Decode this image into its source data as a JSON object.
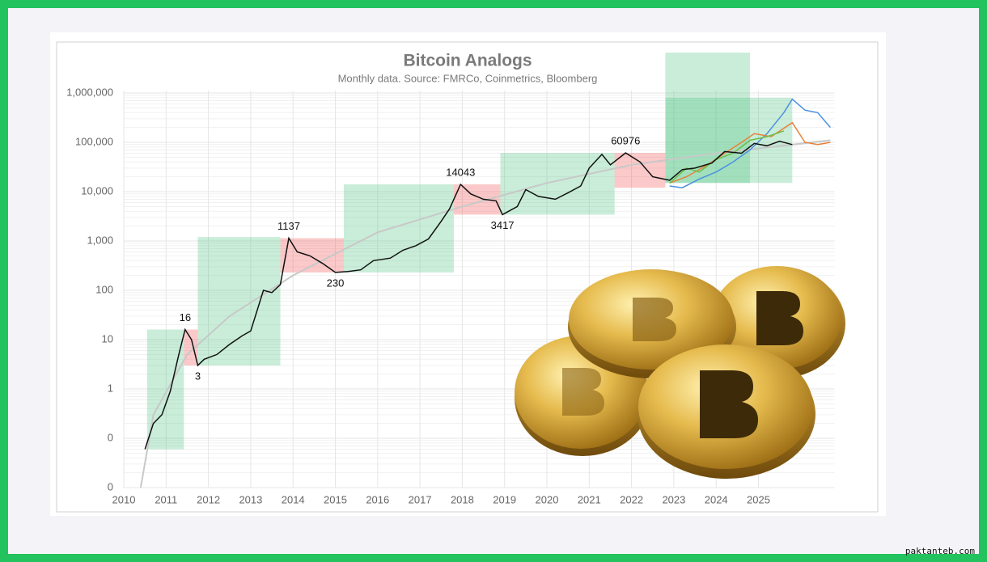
{
  "chart_data": {
    "type": "line",
    "title": "Bitcoin Analogs",
    "subtitle": "Monthly data.  Source: FMRCo, Coinmetrics, Bloomberg",
    "log_scale": true,
    "grid": true,
    "xlim": [
      2010,
      2026.8
    ],
    "xticks": [
      2010,
      2011,
      2012,
      2013,
      2014,
      2015,
      2016,
      2017,
      2018,
      2019,
      2020,
      2021,
      2022,
      2023,
      2024,
      2025
    ],
    "ylim": [
      0.01,
      1000000
    ],
    "yticks": [
      {
        "value": 0.01,
        "label": "0"
      },
      {
        "value": 0.1,
        "label": "0"
      },
      1,
      10,
      100,
      {
        "value": 1000,
        "label": "1,000"
      },
      {
        "value": 10000,
        "label": "10,000"
      },
      {
        "value": 100000,
        "label": "100,000"
      },
      {
        "value": 1000000,
        "label": "1,000,000"
      }
    ],
    "regions": [
      {
        "x": [
          2010.55,
          2011.42
        ],
        "y": [
          0.06,
          16
        ],
        "color": "#3cbe78"
      },
      {
        "x": [
          2011.42,
          2011.75
        ],
        "y": [
          3,
          16
        ],
        "color": "#f03c3c"
      },
      {
        "x": [
          2011.75,
          2013.7
        ],
        "y": [
          3,
          1200
        ],
        "color": "#3cbe78"
      },
      {
        "x": [
          2013.7,
          2015.2
        ],
        "y": [
          230,
          1137
        ],
        "color": "#f03c3c"
      },
      {
        "x": [
          2015.2,
          2017.8
        ],
        "y": [
          230,
          14043
        ],
        "color": "#3cbe78"
      },
      {
        "x": [
          2017.8,
          2018.9
        ],
        "y": [
          3417,
          14043
        ],
        "color": "#f03c3c"
      },
      {
        "x": [
          2018.9,
          2021.6
        ],
        "y": [
          3417,
          60976
        ],
        "color": "#3cbe78"
      },
      {
        "x": [
          2021.6,
          2022.8
        ],
        "y": [
          12000,
          60976
        ],
        "color": "#f03c3c"
      },
      {
        "x": [
          2022.8,
          2024.8
        ],
        "y": [
          15000,
          6600000
        ],
        "color": "#3cbe78"
      },
      {
        "x": [
          2022.8,
          2025.8
        ],
        "y": [
          15000,
          800000
        ],
        "color": "#3cbe78"
      }
    ],
    "series": [
      {
        "color": "#c8c8c8",
        "x": [
          2010.4,
          2010.7,
          2011.5,
          2012.5,
          2014,
          2016,
          2018,
          2020,
          2022,
          2024,
          2026.7
        ],
        "values": [
          0.01,
          0.3,
          5,
          30,
          200,
          1500,
          5000,
          15000,
          35000,
          60000,
          110000
        ]
      },
      {
        "color": "#4a90e2",
        "x": [
          2022.9,
          2023.2,
          2023.6,
          2024.0,
          2024.4,
          2024.8,
          2025.2,
          2025.6,
          2025.8,
          2026.1,
          2026.4,
          2026.7
        ],
        "values": [
          13000,
          12000,
          18000,
          25000,
          40000,
          70000,
          150000,
          400000,
          750000,
          450000,
          400000,
          200000
        ]
      },
      {
        "color": "#e8803a",
        "x": [
          2022.9,
          2023.3,
          2023.8,
          2024.2,
          2024.6,
          2024.9,
          2025.3,
          2025.8,
          2026.1,
          2026.4,
          2026.7
        ],
        "values": [
          15000,
          20000,
          35000,
          60000,
          100000,
          150000,
          130000,
          250000,
          100000,
          90000,
          100000
        ]
      },
      {
        "color": "#6cbf4a",
        "x": [
          2022.9,
          2023.3,
          2023.6,
          2024.0,
          2024.4,
          2024.8,
          2025.2,
          2025.6
        ],
        "values": [
          15000,
          30000,
          25000,
          45000,
          60000,
          110000,
          130000,
          170000
        ]
      },
      {
        "color": "#111111",
        "x": [
          2010.5,
          2010.7,
          2010.9,
          2011.1,
          2011.3,
          2011.45,
          2011.6,
          2011.75,
          2011.9,
          2012.2,
          2012.5,
          2012.8,
          2013.0,
          2013.3,
          2013.5,
          2013.7,
          2013.9,
          2014.1,
          2014.4,
          2014.7,
          2015.0,
          2015.3,
          2015.6,
          2015.9,
          2016.3,
          2016.6,
          2016.9,
          2017.2,
          2017.5,
          2017.7,
          2017.96,
          2018.2,
          2018.5,
          2018.8,
          2018.95,
          2019.3,
          2019.5,
          2019.8,
          2020.2,
          2020.5,
          2020.8,
          2021.0,
          2021.3,
          2021.5,
          2021.86,
          2022.2,
          2022.5,
          2022.9,
          2023.2,
          2023.5,
          2023.9,
          2024.2,
          2024.6,
          2024.9,
          2025.2,
          2025.5,
          2025.8
        ],
        "values": [
          0.06,
          0.2,
          0.3,
          0.9,
          5,
          16,
          10,
          3,
          4,
          5,
          8,
          12,
          15,
          100,
          90,
          130,
          1137,
          600,
          500,
          350,
          230,
          240,
          260,
          400,
          450,
          650,
          800,
          1100,
          2500,
          4500,
          14043,
          9000,
          7000,
          6500,
          3417,
          5000,
          11000,
          8000,
          7000,
          9500,
          13000,
          30000,
          57000,
          35000,
          60976,
          40000,
          20000,
          17000,
          28000,
          30000,
          38000,
          65000,
          60000,
          95000,
          85000,
          105000,
          90000
        ]
      }
    ],
    "annotations": [
      {
        "text": "16",
        "x": 2011.45,
        "y": 16,
        "position": "above"
      },
      {
        "text": "3",
        "x": 2011.75,
        "y": 3,
        "position": "below"
      },
      {
        "text": "1137",
        "x": 2013.9,
        "y": 1137,
        "position": "above"
      },
      {
        "text": "230",
        "x": 2015.0,
        "y": 230,
        "position": "below"
      },
      {
        "text": "14043",
        "x": 2017.96,
        "y": 14043,
        "position": "above"
      },
      {
        "text": "3417",
        "x": 2018.95,
        "y": 3417,
        "position": "below"
      },
      {
        "text": "60976",
        "x": 2021.86,
        "y": 60976,
        "position": "above"
      }
    ]
  },
  "watermark": "paktanteb.com"
}
